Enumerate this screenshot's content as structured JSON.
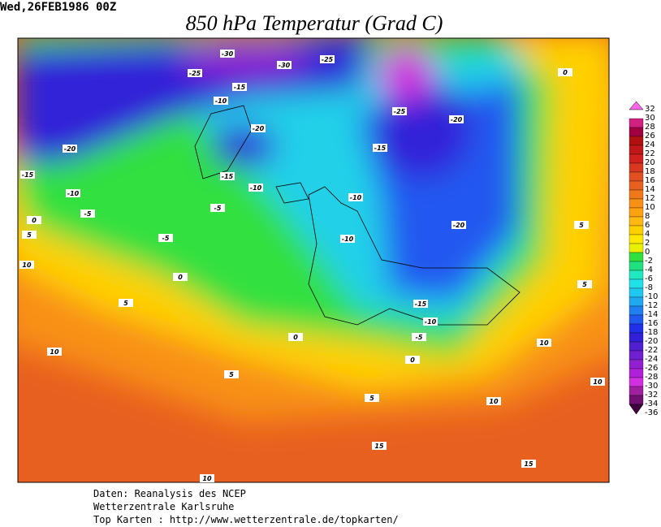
{
  "header": {
    "date": "Wed,26FEB1986 00Z",
    "title": "850 hPa Temperatur (Grad C)"
  },
  "map": {
    "contour_labels": [
      "-30",
      "-30",
      "-25",
      "-25",
      "-15",
      "-10",
      "-25",
      "-20",
      "-20",
      "-20",
      "-15",
      "-15",
      "-15",
      "-10",
      "-10",
      "-10",
      "-5",
      "-5",
      "-20",
      "0",
      "5",
      "-5",
      "-10",
      "10",
      "0",
      "5",
      "5",
      "5",
      "-15",
      "-10",
      "-5",
      "0",
      "10",
      "10",
      "0",
      "5",
      "10",
      "5",
      "10",
      "15",
      "15",
      "10",
      "0"
    ]
  },
  "colorbar": {
    "ticks": [
      32,
      30,
      28,
      26,
      24,
      22,
      20,
      18,
      16,
      14,
      12,
      10,
      8,
      6,
      4,
      2,
      0,
      -2,
      -4,
      -6,
      -8,
      -10,
      -12,
      -14,
      -16,
      -18,
      -20,
      -22,
      -24,
      -26,
      -28,
      -30,
      -32,
      -34,
      -36
    ],
    "colors": [
      "#ff66ee",
      "#d02080",
      "#a00040",
      "#b01010",
      "#c01818",
      "#d02020",
      "#d83820",
      "#e05020",
      "#e86020",
      "#f07818",
      "#f89018",
      "#ffa010",
      "#ffb810",
      "#ffd000",
      "#ffe800",
      "#e8f000",
      "#30e040",
      "#20e080",
      "#20e8c0",
      "#20e0e8",
      "#20c8f0",
      "#20a8f0",
      "#2080f0",
      "#2058f0",
      "#2030e8",
      "#3020d8",
      "#5020d0",
      "#7020d0",
      "#9020d0",
      "#b020d8",
      "#d030e0",
      "#a020a0",
      "#701070",
      "#400040"
    ]
  },
  "footer": {
    "lines": [
      "Daten: Reanalysis des NCEP",
      "Wetterzentrale Karlsruhe",
      "Top Karten :  http://www.wetterzentrale.de/topkarten/"
    ]
  }
}
